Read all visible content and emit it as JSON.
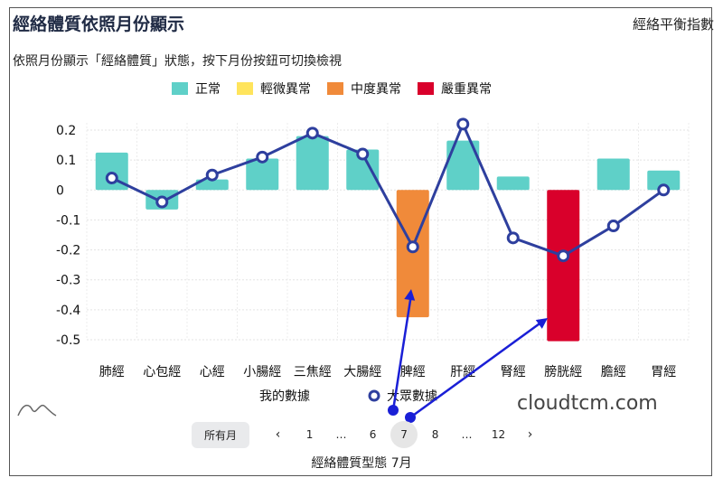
{
  "header": {
    "title": "經絡體質依照月份顯示",
    "right_label": "經絡平衡指數",
    "description": "依照月份顯示「經絡體質」狀態，按下月份按鈕可切換檢視"
  },
  "legend": [
    {
      "label": "正常",
      "color": "#5fd0c8"
    },
    {
      "label": "輕微異常",
      "color": "#ffe45c"
    },
    {
      "label": "中度異常",
      "color": "#f08a3a"
    },
    {
      "label": "嚴重異常",
      "color": "#d9002b"
    }
  ],
  "chart_data": {
    "type": "bar",
    "categories": [
      "肺經",
      "心包經",
      "心經",
      "小腸經",
      "三焦經",
      "大腸經",
      "脾經",
      "肝經",
      "腎經",
      "膀胱經",
      "膽經",
      "胃經"
    ],
    "series": [
      {
        "name": "我的數據",
        "type": "bar",
        "values": [
          0.125,
          -0.065,
          0.035,
          0.105,
          0.18,
          0.135,
          -0.425,
          0.165,
          0.045,
          -0.505,
          0.105,
          0.065
        ],
        "status": [
          "正常",
          "正常",
          "正常",
          "正常",
          "正常",
          "正常",
          "中度異常",
          "正常",
          "正常",
          "嚴重異常",
          "正常",
          "正常"
        ]
      },
      {
        "name": "大眾數據",
        "type": "line",
        "values": [
          0.04,
          -0.04,
          0.05,
          0.11,
          0.19,
          0.12,
          -0.19,
          0.22,
          -0.16,
          -0.22,
          -0.12,
          0.0
        ]
      }
    ],
    "yticks": [
      "0.2",
      "0.1",
      "0",
      "-0.1",
      "-0.2",
      "-0.3",
      "-0.4",
      "-0.5"
    ],
    "ylim": [
      -0.5,
      0.2
    ],
    "grid": true,
    "line_color": "#2e3f9e",
    "annotation_color": "#1a1fd6"
  },
  "pager": {
    "all_label": "所有月",
    "prev": "‹",
    "next": "›",
    "pages": [
      "1",
      "…",
      "6",
      "7",
      "8",
      "…",
      "12"
    ],
    "active": "7"
  },
  "caption": "經絡體質型態 7月",
  "watermark": "cloudtcm.com"
}
